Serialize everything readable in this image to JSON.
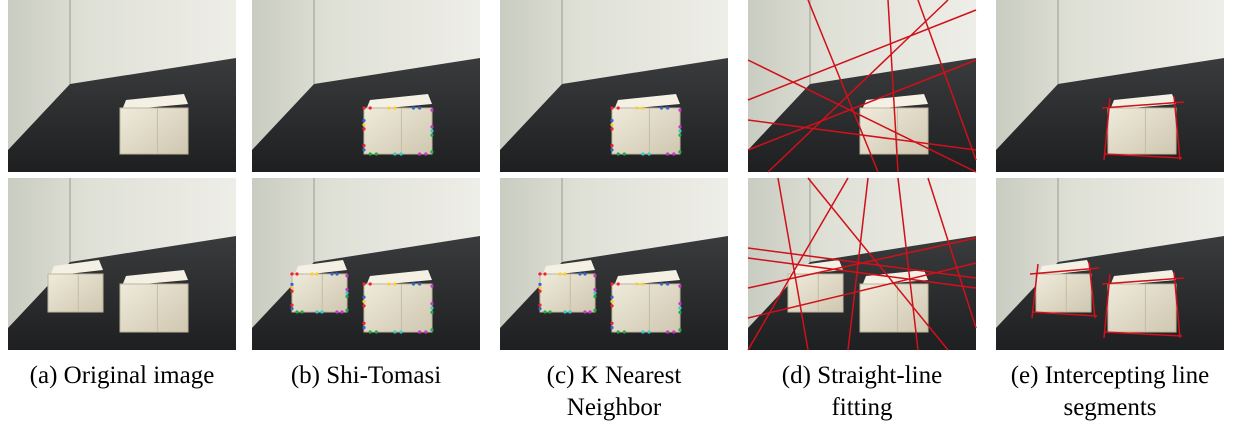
{
  "captions": [
    [
      "(a) Original image"
    ],
    [
      "(b) Shi-Tomasi"
    ],
    [
      "(c) K Nearest",
      "Neighbor"
    ],
    [
      "(d) Straight-line",
      "fitting"
    ],
    [
      "(e) Intercepting line",
      "segments"
    ]
  ]
}
